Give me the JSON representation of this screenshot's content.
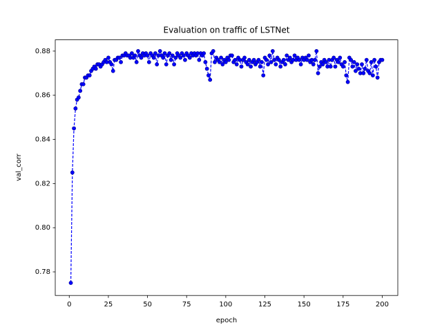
{
  "chart_data": {
    "type": "line",
    "title": "Evaluation on traffic of LSTNet",
    "x_label": "epoch",
    "y_label": "val_corr",
    "x": [
      1,
      2,
      3,
      4,
      5,
      6,
      7,
      8,
      9,
      10,
      11,
      12,
      13,
      14,
      15,
      16,
      17,
      18,
      19,
      20,
      21,
      22,
      23,
      24,
      25,
      26,
      27,
      28,
      29,
      30,
      31,
      32,
      33,
      34,
      35,
      36,
      37,
      38,
      39,
      40,
      41,
      42,
      43,
      44,
      45,
      46,
      47,
      48,
      49,
      50,
      51,
      52,
      53,
      54,
      55,
      56,
      57,
      58,
      59,
      60,
      61,
      62,
      63,
      64,
      65,
      66,
      67,
      68,
      69,
      70,
      71,
      72,
      73,
      74,
      75,
      76,
      77,
      78,
      79,
      80,
      81,
      82,
      83,
      84,
      85,
      86,
      87,
      88,
      89,
      90,
      91,
      92,
      93,
      94,
      95,
      96,
      97,
      98,
      99,
      100,
      101,
      102,
      103,
      104,
      105,
      106,
      107,
      108,
      109,
      110,
      111,
      112,
      113,
      114,
      115,
      116,
      117,
      118,
      119,
      120,
      121,
      122,
      123,
      124,
      125,
      126,
      127,
      128,
      129,
      130,
      131,
      132,
      133,
      134,
      135,
      136,
      137,
      138,
      139,
      140,
      141,
      142,
      143,
      144,
      145,
      146,
      147,
      148,
      149,
      150,
      151,
      152,
      153,
      154,
      155,
      156,
      157,
      158,
      159,
      160,
      161,
      162,
      163,
      164,
      165,
      166,
      167,
      168,
      169,
      170,
      171,
      172,
      173,
      174,
      175,
      176,
      177,
      178,
      179,
      180,
      181,
      182,
      183,
      184,
      185,
      186,
      187,
      188,
      189,
      190,
      191,
      192,
      193,
      194,
      195,
      196,
      197,
      198,
      199,
      200
    ],
    "series": [
      {
        "color": "#0000ff",
        "values": [
          0.775,
          0.825,
          0.845,
          0.854,
          0.858,
          0.859,
          0.862,
          0.865,
          0.865,
          0.868,
          0.868,
          0.869,
          0.869,
          0.871,
          0.872,
          0.873,
          0.872,
          0.874,
          0.874,
          0.873,
          0.874,
          0.875,
          0.876,
          0.875,
          0.877,
          0.875,
          0.874,
          0.871,
          0.876,
          0.876,
          0.877,
          0.877,
          0.875,
          0.878,
          0.878,
          0.879,
          0.878,
          0.878,
          0.877,
          0.879,
          0.877,
          0.878,
          0.875,
          0.88,
          0.878,
          0.877,
          0.879,
          0.878,
          0.879,
          0.878,
          0.875,
          0.879,
          0.878,
          0.877,
          0.879,
          0.874,
          0.878,
          0.88,
          0.878,
          0.877,
          0.879,
          0.874,
          0.878,
          0.879,
          0.876,
          0.878,
          0.874,
          0.877,
          0.879,
          0.878,
          0.877,
          0.879,
          0.878,
          0.876,
          0.879,
          0.878,
          0.877,
          0.879,
          0.878,
          0.879,
          0.878,
          0.879,
          0.876,
          0.879,
          0.878,
          0.879,
          0.875,
          0.872,
          0.869,
          0.867,
          0.879,
          0.88,
          0.875,
          0.877,
          0.876,
          0.875,
          0.877,
          0.874,
          0.876,
          0.875,
          0.877,
          0.876,
          0.878,
          0.878,
          0.875,
          0.876,
          0.874,
          0.877,
          0.876,
          0.873,
          0.876,
          0.877,
          0.875,
          0.874,
          0.876,
          0.873,
          0.875,
          0.876,
          0.874,
          0.875,
          0.876,
          0.873,
          0.875,
          0.869,
          0.877,
          0.876,
          0.874,
          0.878,
          0.875,
          0.88,
          0.876,
          0.874,
          0.877,
          0.876,
          0.873,
          0.875,
          0.876,
          0.874,
          0.878,
          0.876,
          0.877,
          0.875,
          0.876,
          0.878,
          0.876,
          0.877,
          0.876,
          0.874,
          0.877,
          0.876,
          0.877,
          0.876,
          0.878,
          0.875,
          0.876,
          0.874,
          0.876,
          0.88,
          0.87,
          0.873,
          0.875,
          0.874,
          0.876,
          0.875,
          0.873,
          0.876,
          0.873,
          0.876,
          0.877,
          0.873,
          0.876,
          0.875,
          0.877,
          0.874,
          0.873,
          0.875,
          0.869,
          0.866,
          0.877,
          0.876,
          0.873,
          0.875,
          0.871,
          0.874,
          0.872,
          0.87,
          0.874,
          0.87,
          0.872,
          0.876,
          0.871,
          0.87,
          0.875,
          0.869,
          0.876,
          0.873,
          0.868,
          0.875,
          0.876,
          0.876
        ]
      }
    ],
    "xlim": [
      -8.95,
      209.95
    ],
    "xticks": [
      0,
      25,
      50,
      75,
      100,
      125,
      150,
      175,
      200
    ],
    "ylim": [
      0.7693,
      0.8851
    ],
    "yticks": [
      0.78,
      {
        "value": 0.8,
        "label": "0.80"
      },
      0.82,
      0.84,
      0.86,
      0.88
    ],
    "line_style": "dashed",
    "markers": true
  }
}
